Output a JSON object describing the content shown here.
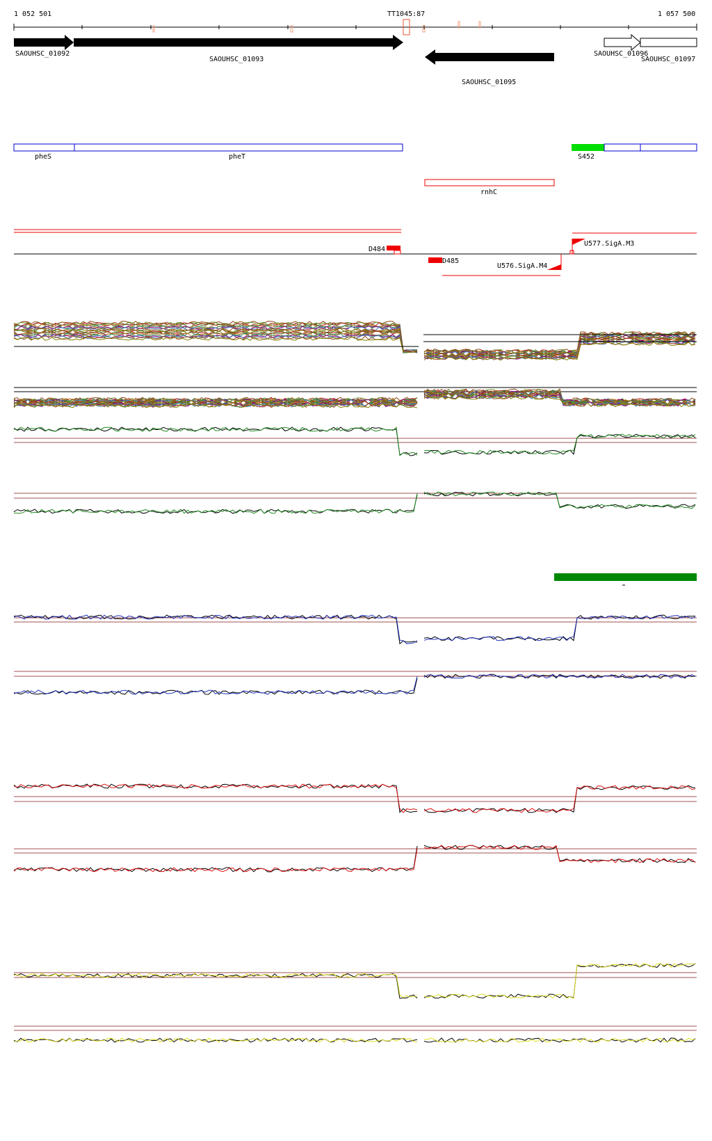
{
  "ruler": {
    "start_label": "1 052 501",
    "end_label": "1 057 500",
    "marker_label": "TT1045:87"
  },
  "genes": [
    {
      "id": "SAOUHSC_01092",
      "label": "SAOUHSC_01092",
      "strand": "+",
      "filled": true
    },
    {
      "id": "SAOUHSC_01093",
      "label": "SAOUHSC_01093",
      "strand": "+",
      "filled": true
    },
    {
      "id": "SAOUHSC_01095",
      "label": "SAOUHSC_01095",
      "strand": "-",
      "filled": true
    },
    {
      "id": "SAOUHSC_01096",
      "label": "SAOUHSC_01096",
      "strand": "+",
      "filled": false
    },
    {
      "id": "SAOUHSC_01097",
      "label": "SAOUHSC_01097",
      "strand": "+",
      "filled": false
    }
  ],
  "annotations_plus": [
    {
      "label": "pheS",
      "color": "#0000cc"
    },
    {
      "label": "pheT",
      "color": "#0000cc"
    },
    {
      "label": "S452",
      "color": "#00dd00"
    }
  ],
  "annotations_minus": [
    {
      "label": "rnhC",
      "color": "#ee0000"
    }
  ],
  "features": [
    {
      "label": "D484",
      "color": "#ee0000"
    },
    {
      "label": "D485",
      "color": "#ee0000"
    },
    {
      "label": "U576.SigA.M4",
      "color": "#ee0000"
    },
    {
      "label": "U577.SigA.M3",
      "color": "#ee0000"
    }
  ],
  "expression_tracks": [
    {
      "name": "multi-condition-plus",
      "colors": [
        "#8b4513",
        "#6b8e23",
        "#b22222",
        "#556b2f",
        "#cd853f",
        "#2e8b57",
        "#8b008b",
        "#4682b4",
        "#a0522d",
        "#808000"
      ]
    },
    {
      "name": "multi-condition-minus",
      "colors": [
        "#8b4513",
        "#6b8e23",
        "#b22222",
        "#556b2f",
        "#cd853f",
        "#2e8b57",
        "#8b008b",
        "#4682b4",
        "#a0522d",
        "#808000"
      ]
    },
    {
      "name": "green-plus",
      "color": "#228b22"
    },
    {
      "name": "green-minus",
      "color": "#228b22"
    },
    {
      "name": "blue-plus",
      "color": "#2233bb"
    },
    {
      "name": "blue-minus",
      "color": "#2233bb"
    },
    {
      "name": "red-plus",
      "color": "#dd1111"
    },
    {
      "name": "red-minus",
      "color": "#dd1111"
    },
    {
      "name": "yellow-plus",
      "color": "#dddd22"
    },
    {
      "name": "yellow-minus",
      "color": "#dddd22"
    }
  ],
  "highlight_bar_color": "#008800"
}
